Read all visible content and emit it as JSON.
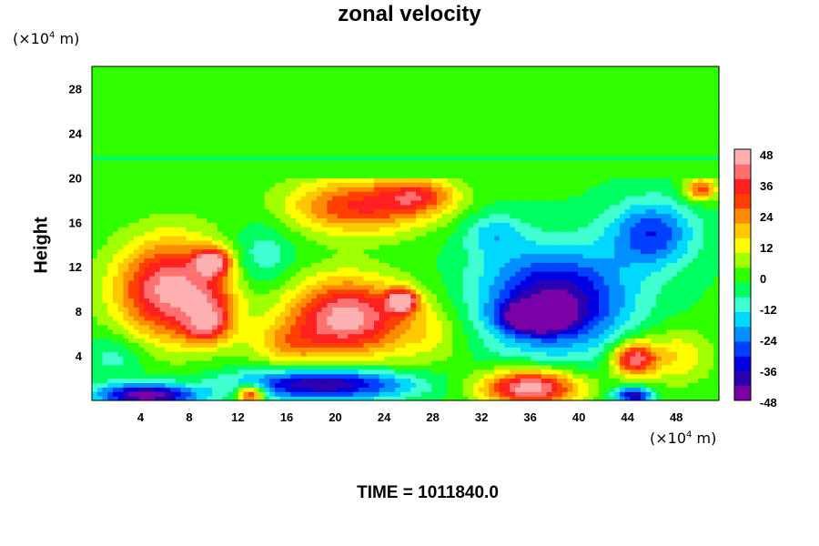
{
  "chart_data": {
    "type": "heatmap",
    "title": "zonal velocity",
    "xlabel": "",
    "ylabel": "Height",
    "x_unit_prefix": "(×10",
    "x_unit_exp": "4",
    "x_unit_suffix": " m)",
    "y_unit_prefix": "(×10",
    "y_unit_exp": "4",
    "y_unit_suffix": " m)",
    "xlim": [
      0,
      51.5
    ],
    "ylim": [
      0,
      30
    ],
    "x_ticks": [
      4,
      8,
      12,
      16,
      20,
      24,
      28,
      32,
      36,
      40,
      44,
      48
    ],
    "y_ticks": [
      4,
      8,
      12,
      16,
      20,
      24,
      28
    ],
    "colorbar": {
      "range": [
        -48,
        48
      ],
      "tick_labels": [
        "48",
        "36",
        "24",
        "12",
        "0",
        "-12",
        "-24",
        "-36",
        "-48"
      ],
      "colors": [
        "#7a00a8",
        "#2a00b0",
        "#0000e0",
        "#0040ff",
        "#0090ff",
        "#00d8ff",
        "#40ffd0",
        "#00ff60",
        "#30ff00",
        "#a0ff00",
        "#ffff00",
        "#ffc800",
        "#ff8c00",
        "#ff4000",
        "#ff2020",
        "#ff7070",
        "#ffb0b0"
      ]
    },
    "background_value": -2,
    "upper_layer": {
      "y_min": 20,
      "y_max": 30,
      "value": -2
    },
    "features": [
      {
        "x": 6.5,
        "y": 10,
        "sx": 4.5,
        "sy": 4.5,
        "value": 46
      },
      {
        "x": 10,
        "y": 12.5,
        "sx": 1.4,
        "sy": 1.2,
        "value": 40
      },
      {
        "x": 21,
        "y": 7.5,
        "sx": 5,
        "sy": 3.5,
        "value": 46
      },
      {
        "x": 25.5,
        "y": 9,
        "sx": 1.2,
        "sy": 1,
        "value": 44
      },
      {
        "x": 22,
        "y": 17.5,
        "sx": 6,
        "sy": 2.5,
        "value": 32
      },
      {
        "x": 27,
        "y": 18.5,
        "sx": 3,
        "sy": 1.5,
        "value": 22
      },
      {
        "x": 38,
        "y": 9,
        "sx": 6,
        "sy": 4.5,
        "value": -44
      },
      {
        "x": 36.5,
        "y": 7.5,
        "sx": 2.5,
        "sy": 1.2,
        "value": -48
      },
      {
        "x": 46,
        "y": 15,
        "sx": 3.5,
        "sy": 3,
        "value": -30
      },
      {
        "x": 10,
        "y": 8.5,
        "sx": 2,
        "sy": 2,
        "value": 14
      },
      {
        "x": 19,
        "y": 1.5,
        "sx": 7,
        "sy": 1.4,
        "value": -44
      },
      {
        "x": 4.5,
        "y": 0.5,
        "sx": 4,
        "sy": 1,
        "value": -48
      },
      {
        "x": 36,
        "y": 1.2,
        "sx": 4,
        "sy": 1.6,
        "value": 48
      },
      {
        "x": 44.5,
        "y": 3.8,
        "sx": 1.8,
        "sy": 1.5,
        "value": 40
      },
      {
        "x": 44.5,
        "y": 0.5,
        "sx": 1.5,
        "sy": 0.7,
        "value": -42
      },
      {
        "x": 13,
        "y": 0.6,
        "sx": 1.2,
        "sy": 0.8,
        "value": 40
      },
      {
        "x": 48,
        "y": 4,
        "sx": 3,
        "sy": 2.5,
        "value": 14
      },
      {
        "x": 9.5,
        "y": 6.5,
        "sx": 2,
        "sy": 1.5,
        "value": 22
      },
      {
        "x": 14,
        "y": 13,
        "sx": 2.5,
        "sy": 3,
        "value": -14
      },
      {
        "x": 33,
        "y": 15,
        "sx": 2.5,
        "sy": 2,
        "value": -16
      },
      {
        "x": 2,
        "y": 4,
        "sx": 2.5,
        "sy": 2,
        "value": -12
      },
      {
        "x": 28,
        "y": 6,
        "sx": 3,
        "sy": 3,
        "value": 8
      },
      {
        "x": 50,
        "y": 19,
        "sx": 1.3,
        "sy": 1,
        "value": 30
      },
      {
        "x": 16,
        "y": 5,
        "sx": 3,
        "sy": 2,
        "value": 14
      }
    ]
  },
  "footer": {
    "time_label": "TIME = 1011840.0"
  }
}
